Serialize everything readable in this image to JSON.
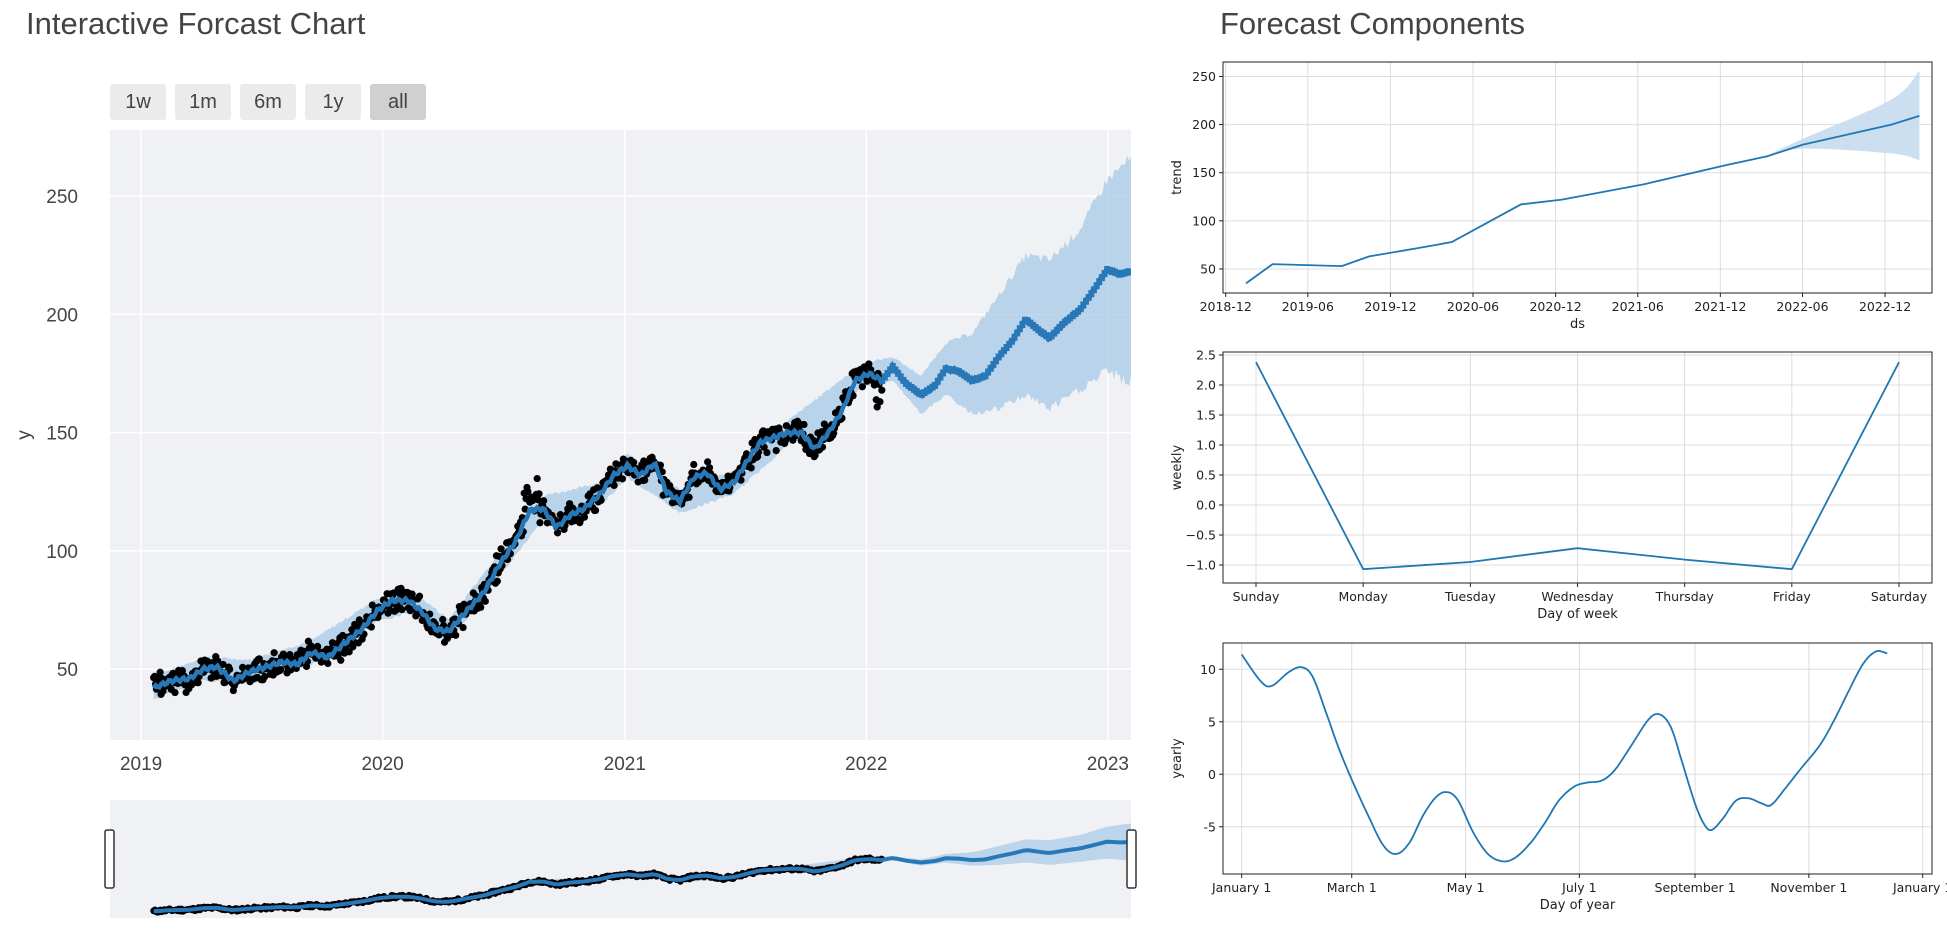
{
  "left_panel": {
    "title": "Interactive Forcast Chart",
    "range_buttons": [
      {
        "label": "1w",
        "active": false
      },
      {
        "label": "1m",
        "active": false
      },
      {
        "label": "6m",
        "active": false
      },
      {
        "label": "1y",
        "active": false
      },
      {
        "label": "all",
        "active": true
      }
    ]
  },
  "right_panel": {
    "title": "Forecast Components"
  },
  "colors": {
    "forecast_line": "#2878b8",
    "uncertainty_band": "#a7c9e5",
    "observed_points": "#000000",
    "plot_background": "#f0f1f5",
    "mpl_line": "#1f77b4",
    "mpl_band": "#c6dcef"
  },
  "chart_data": [
    {
      "type": "line",
      "name": "forecast",
      "xlabel": "",
      "ylabel": "y",
      "x_range": [
        "2018-11-15",
        "2023-02-05"
      ],
      "ylim": [
        20,
        278
      ],
      "x_ticks": [
        "2019",
        "2020",
        "2021",
        "2022",
        "2023"
      ],
      "y_ticks": [
        50,
        100,
        150,
        200,
        250
      ],
      "series": [
        {
          "role": "yhat",
          "points": [
            [
              "2019-01-20",
              42
            ],
            [
              "2019-02-15",
              45
            ],
            [
              "2019-03-15",
              46
            ],
            [
              "2019-04-05",
              50
            ],
            [
              "2019-04-25",
              51
            ],
            [
              "2019-05-20",
              45
            ],
            [
              "2019-06-15",
              49
            ],
            [
              "2019-07-10",
              51
            ],
            [
              "2019-08-01",
              53
            ],
            [
              "2019-08-25",
              52
            ],
            [
              "2019-09-15",
              57
            ],
            [
              "2019-10-10",
              55
            ],
            [
              "2019-11-05",
              61
            ],
            [
              "2019-12-01",
              67
            ],
            [
              "2019-12-25",
              75
            ],
            [
              "2020-01-15",
              79
            ],
            [
              "2020-02-10",
              79
            ],
            [
              "2020-03-01",
              74
            ],
            [
              "2020-03-20",
              67
            ],
            [
              "2020-04-10",
              66
            ],
            [
              "2020-05-05",
              74
            ],
            [
              "2020-06-01",
              82
            ],
            [
              "2020-06-25",
              94
            ],
            [
              "2020-07-20",
              104
            ],
            [
              "2020-08-10",
              117
            ],
            [
              "2020-08-30",
              118
            ],
            [
              "2020-09-20",
              110
            ],
            [
              "2020-10-10",
              115
            ],
            [
              "2020-11-01",
              118
            ],
            [
              "2020-11-25",
              124
            ],
            [
              "2020-12-15",
              132
            ],
            [
              "2021-01-05",
              136
            ],
            [
              "2021-01-25",
              132
            ],
            [
              "2021-02-15",
              137
            ],
            [
              "2021-03-05",
              125
            ],
            [
              "2021-03-25",
              121
            ],
            [
              "2021-04-15",
              131
            ],
            [
              "2021-05-05",
              133
            ],
            [
              "2021-05-25",
              126
            ],
            [
              "2021-06-15",
              129
            ],
            [
              "2021-07-05",
              138
            ],
            [
              "2021-07-25",
              146
            ],
            [
              "2021-08-15",
              148
            ],
            [
              "2021-09-05",
              150
            ],
            [
              "2021-09-25",
              150
            ],
            [
              "2021-10-15",
              143
            ],
            [
              "2021-11-05",
              150
            ],
            [
              "2021-11-25",
              159
            ],
            [
              "2021-12-15",
              172
            ],
            [
              "2022-01-05",
              175
            ],
            [
              "2022-01-25",
              172
            ],
            [
              "2022-02-10",
              178
            ],
            [
              "2022-03-01",
              171
            ],
            [
              "2022-03-25",
              166
            ],
            [
              "2022-04-15",
              170
            ],
            [
              "2022-05-01",
              177
            ],
            [
              "2022-05-20",
              176
            ],
            [
              "2022-06-10",
              172
            ],
            [
              "2022-06-30",
              174
            ],
            [
              "2022-07-20",
              182
            ],
            [
              "2022-08-10",
              189
            ],
            [
              "2022-08-30",
              198
            ],
            [
              "2022-09-20",
              193
            ],
            [
              "2022-10-05",
              190
            ],
            [
              "2022-10-25",
              196
            ],
            [
              "2022-11-20",
              202
            ],
            [
              "2022-12-10",
              210
            ],
            [
              "2022-12-31",
              219
            ],
            [
              "2023-01-20",
              217
            ],
            [
              "2023-02-01",
              218
            ]
          ]
        },
        {
          "role": "uncertainty_upper",
          "points": [
            [
              "2019-01-20",
              47
            ],
            [
              "2019-04-05",
              55
            ],
            [
              "2019-06-15",
              54
            ],
            [
              "2019-09-15",
              62
            ],
            [
              "2019-12-25",
              80
            ],
            [
              "2020-02-10",
              84
            ],
            [
              "2020-04-10",
              71
            ],
            [
              "2020-06-25",
              99
            ],
            [
              "2020-08-30",
              123
            ],
            [
              "2020-11-25",
              129
            ],
            [
              "2021-01-05",
              141
            ],
            [
              "2021-03-25",
              126
            ],
            [
              "2021-06-15",
              134
            ],
            [
              "2021-09-05",
              155
            ],
            [
              "2021-12-15",
              177
            ],
            [
              "2022-01-05",
              180
            ],
            [
              "2022-02-10",
              182
            ],
            [
              "2022-03-25",
              174
            ],
            [
              "2022-05-01",
              188
            ],
            [
              "2022-06-10",
              192
            ],
            [
              "2022-07-20",
              208
            ],
            [
              "2022-08-30",
              225
            ],
            [
              "2022-10-05",
              223
            ],
            [
              "2022-11-20",
              236
            ],
            [
              "2022-12-31",
              257
            ],
            [
              "2023-02-01",
              265
            ]
          ]
        },
        {
          "role": "uncertainty_lower",
          "points": [
            [
              "2019-01-20",
              37
            ],
            [
              "2019-04-05",
              45
            ],
            [
              "2019-06-15",
              44
            ],
            [
              "2019-09-15",
              52
            ],
            [
              "2019-12-25",
              70
            ],
            [
              "2020-02-10",
              74
            ],
            [
              "2020-04-10",
              61
            ],
            [
              "2020-06-25",
              89
            ],
            [
              "2020-08-30",
              113
            ],
            [
              "2020-11-25",
              119
            ],
            [
              "2021-01-05",
              131
            ],
            [
              "2021-03-25",
              116
            ],
            [
              "2021-06-15",
              124
            ],
            [
              "2021-09-05",
              145
            ],
            [
              "2021-12-15",
              167
            ],
            [
              "2022-01-05",
              170
            ],
            [
              "2022-02-10",
              172
            ],
            [
              "2022-03-25",
              158
            ],
            [
              "2022-05-01",
              166
            ],
            [
              "2022-06-10",
              158
            ],
            [
              "2022-07-20",
              160
            ],
            [
              "2022-08-30",
              166
            ],
            [
              "2022-10-05",
              160
            ],
            [
              "2022-11-20",
              168
            ],
            [
              "2022-12-31",
              176
            ],
            [
              "2023-02-01",
              171
            ]
          ]
        }
      ],
      "observed_range": [
        "2019-01-20",
        "2022-01-25"
      ],
      "observed_scatter": 4
    },
    {
      "type": "line",
      "name": "trend",
      "xlabel": "ds",
      "ylabel": "trend",
      "x_range": [
        "2018-11-25",
        "2023-03-15"
      ],
      "ylim": [
        25,
        265
      ],
      "x_ticks": [
        "2018-12",
        "2019-06",
        "2019-12",
        "2020-06",
        "2020-12",
        "2021-06",
        "2021-12",
        "2022-06",
        "2022-12"
      ],
      "y_ticks": [
        50,
        100,
        150,
        200,
        250
      ],
      "series": [
        {
          "role": "trend",
          "points": [
            [
              "2019-01-15",
              35
            ],
            [
              "2019-03-15",
              55
            ],
            [
              "2019-08-15",
              53
            ],
            [
              "2019-10-15",
              63
            ],
            [
              "2020-03-01",
              74
            ],
            [
              "2020-04-15",
              78
            ],
            [
              "2020-09-15",
              117
            ],
            [
              "2020-12-15",
              122
            ],
            [
              "2021-06-15",
              138
            ],
            [
              "2021-12-15",
              158
            ],
            [
              "2022-03-15",
              167
            ],
            [
              "2022-06-01",
              179
            ],
            [
              "2022-12-15",
              200
            ],
            [
              "2023-02-15",
              209
            ]
          ]
        },
        {
          "role": "band_upper",
          "points": [
            [
              "2022-03-15",
              168
            ],
            [
              "2022-06-01",
              185
            ],
            [
              "2022-12-15",
              226
            ],
            [
              "2023-02-15",
              256
            ]
          ]
        },
        {
          "role": "band_lower",
          "points": [
            [
              "2022-03-15",
              166
            ],
            [
              "2022-06-01",
              175
            ],
            [
              "2022-12-15",
              170
            ],
            [
              "2023-02-15",
              163
            ]
          ]
        }
      ]
    },
    {
      "type": "line",
      "name": "weekly",
      "xlabel": "Day of week",
      "ylabel": "weekly",
      "categories": [
        "Sunday",
        "Monday",
        "Tuesday",
        "Wednesday",
        "Thursday",
        "Friday",
        "Saturday"
      ],
      "values": [
        2.38,
        -1.07,
        -0.95,
        -0.72,
        -0.91,
        -1.07,
        2.38
      ],
      "ylim": [
        -1.3,
        2.55
      ],
      "y_ticks": [
        "−1.0",
        "−0.5",
        "0.0",
        "0.5",
        "1.0",
        "1.5",
        "2.0",
        "2.5"
      ]
    },
    {
      "type": "line",
      "name": "yearly",
      "xlabel": "Day of year",
      "ylabel": "yearly",
      "x_ticks": [
        "January 1",
        "March 1",
        "May 1",
        "July 1",
        "September 1",
        "November 1",
        "January 1"
      ],
      "x_tick_days": [
        0,
        59,
        120,
        181,
        243,
        304,
        365
      ],
      "ylim": [
        -9.5,
        12.5
      ],
      "y_ticks": [
        -5,
        0,
        5,
        10
      ],
      "series": [
        {
          "role": "yearly",
          "points": [
            [
              0,
              11.4
            ],
            [
              10,
              8.9
            ],
            [
              16,
              8.4
            ],
            [
              25,
              9.7
            ],
            [
              32,
              10.2
            ],
            [
              38,
              9.3
            ],
            [
              45,
              6
            ],
            [
              52,
              2.5
            ],
            [
              59,
              -0.5
            ],
            [
              68,
              -4
            ],
            [
              76,
              -6.8
            ],
            [
              83,
              -7.6
            ],
            [
              90,
              -6.5
            ],
            [
              97,
              -4
            ],
            [
              104,
              -2.2
            ],
            [
              110,
              -1.7
            ],
            [
              116,
              -2.5
            ],
            [
              124,
              -5.5
            ],
            [
              132,
              -7.6
            ],
            [
              140,
              -8.3
            ],
            [
              147,
              -7.9
            ],
            [
              155,
              -6.5
            ],
            [
              163,
              -4.5
            ],
            [
              170,
              -2.5
            ],
            [
              178,
              -1.2
            ],
            [
              185,
              -0.8
            ],
            [
              193,
              -0.6
            ],
            [
              200,
              0.4
            ],
            [
              208,
              2.5
            ],
            [
              218,
              5.2
            ],
            [
              224,
              5.7
            ],
            [
              230,
              4.5
            ],
            [
              236,
              1.2
            ],
            [
              243,
              -2.8
            ],
            [
              248,
              -4.8
            ],
            [
              252,
              -5.3
            ],
            [
              258,
              -4.2
            ],
            [
              265,
              -2.5
            ],
            [
              272,
              -2.3
            ],
            [
              279,
              -2.8
            ],
            [
              284,
              -2.9
            ],
            [
              292,
              -1.2
            ],
            [
              300,
              0.6
            ],
            [
              310,
              2.8
            ],
            [
              318,
              5.3
            ],
            [
              325,
              7.8
            ],
            [
              333,
              10.5
            ],
            [
              340,
              11.7
            ],
            [
              346,
              11.5
            ]
          ]
        }
      ],
      "x_domain": [
        -10,
        370
      ]
    }
  ]
}
